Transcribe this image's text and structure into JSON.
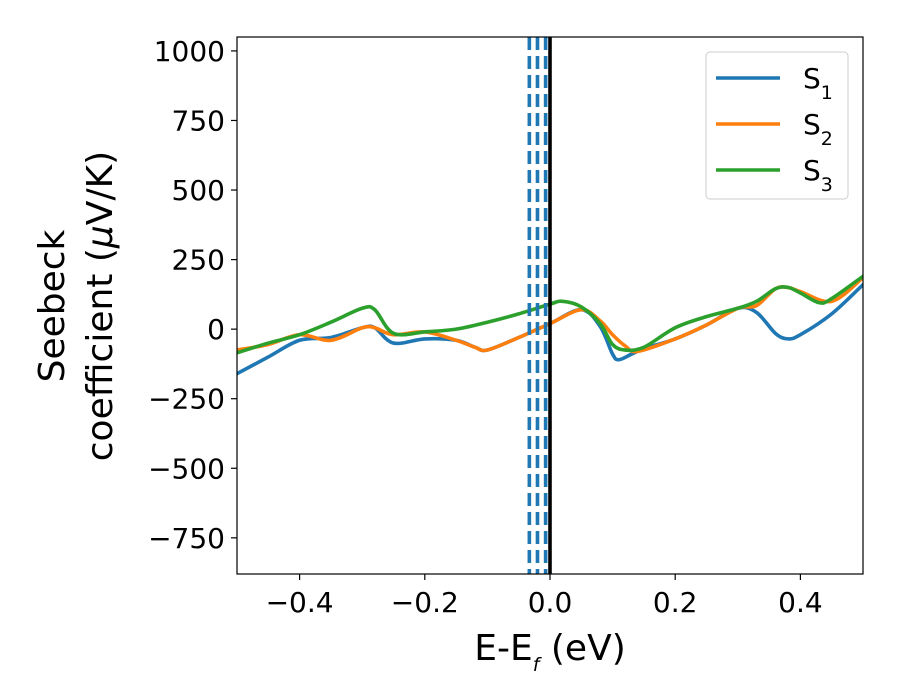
{
  "chart_data": {
    "type": "line",
    "xlabel": {
      "main": "E-E",
      "sub": "f",
      "unit": " (eV)"
    },
    "ylabel": {
      "line1": "Seebeck",
      "line2_main": "coefficient  (",
      "line2_mu": "μ",
      "line2_unit": "V/K)"
    },
    "xlim": [
      -0.5,
      0.5
    ],
    "ylim": [
      -880,
      1050
    ],
    "xticks": [
      -0.4,
      -0.2,
      0.0,
      0.2,
      0.4
    ],
    "xtick_labels": [
      "−0.4",
      "−0.2",
      "0.0",
      "0.2",
      "0.4"
    ],
    "yticks": [
      -750,
      -500,
      -250,
      0,
      250,
      500,
      750,
      1000
    ],
    "ytick_labels": [
      "−750",
      "−500",
      "−250",
      "0",
      "250",
      "500",
      "750",
      "1000"
    ],
    "grid": false,
    "legend_position": "top-right",
    "vlines": [
      {
        "x": -0.033,
        "style": "dashed",
        "color": "#1f77b4"
      },
      {
        "x": -0.02,
        "style": "dashed",
        "color": "#1f77b4"
      },
      {
        "x": -0.007,
        "style": "dashed",
        "color": "#1f77b4"
      },
      {
        "x": 0.0,
        "style": "solid",
        "color": "#000000"
      }
    ],
    "series": [
      {
        "name": "S",
        "sub": "1",
        "color": "#1f77b4",
        "x": [
          -0.5,
          -0.45,
          -0.4,
          -0.35,
          -0.3,
          -0.28,
          -0.25,
          -0.2,
          -0.15,
          -0.12,
          -0.1,
          -0.05,
          0.0,
          0.05,
          0.08,
          0.1,
          0.11,
          0.13,
          0.15,
          0.2,
          0.25,
          0.3,
          0.33,
          0.36,
          0.38,
          0.4,
          0.45,
          0.5
        ],
        "y": [
          -160,
          -100,
          -40,
          -30,
          5,
          5,
          -50,
          -35,
          -40,
          -65,
          -75,
          -30,
          20,
          70,
          10,
          -90,
          -110,
          -90,
          -70,
          -35,
          15,
          75,
          60,
          -15,
          -35,
          -20,
          55,
          160
        ]
      },
      {
        "name": "S",
        "sub": "2",
        "color": "#ff7f0e",
        "x": [
          -0.5,
          -0.45,
          -0.4,
          -0.35,
          -0.3,
          -0.28,
          -0.25,
          -0.2,
          -0.15,
          -0.12,
          -0.1,
          -0.05,
          0.0,
          0.05,
          0.08,
          0.1,
          0.12,
          0.14,
          0.2,
          0.25,
          0.3,
          0.33,
          0.36,
          0.38,
          0.4,
          0.45,
          0.5
        ],
        "y": [
          -75,
          -55,
          -20,
          -40,
          5,
          5,
          -20,
          -10,
          -40,
          -65,
          -75,
          -30,
          20,
          70,
          30,
          -20,
          -60,
          -80,
          -35,
          15,
          75,
          85,
          145,
          150,
          135,
          100,
          185
        ]
      },
      {
        "name": "S",
        "sub": "3",
        "color": "#2ca02c",
        "x": [
          -0.5,
          -0.45,
          -0.4,
          -0.35,
          -0.3,
          -0.28,
          -0.25,
          -0.2,
          -0.15,
          -0.1,
          -0.05,
          0.0,
          0.02,
          0.05,
          0.08,
          0.1,
          0.12,
          0.15,
          0.2,
          0.25,
          0.3,
          0.33,
          0.36,
          0.38,
          0.4,
          0.43,
          0.45,
          0.5
        ],
        "y": [
          -85,
          -50,
          -20,
          25,
          75,
          70,
          -15,
          -10,
          0,
          25,
          55,
          90,
          100,
          80,
          20,
          -55,
          -75,
          -65,
          5,
          45,
          75,
          100,
          145,
          150,
          130,
          95,
          110,
          190
        ]
      }
    ]
  }
}
